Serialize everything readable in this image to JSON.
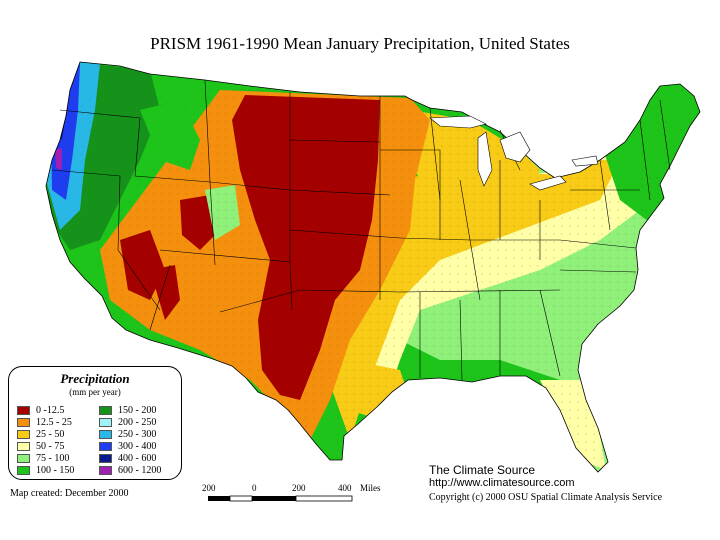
{
  "title": "PRISM 1961-1990 Mean January Precipitation, United States",
  "legend": {
    "title": "Precipitation",
    "units": "(mm per year)",
    "items": [
      {
        "label": "0 -12.5",
        "color": "#a50000"
      },
      {
        "label": "12.5 - 25",
        "color": "#f4900e"
      },
      {
        "label": "25 - 50",
        "color": "#f7cb16"
      },
      {
        "label": "50 - 75",
        "color": "#ffffa8"
      },
      {
        "label": "75 - 100",
        "color": "#8ff07a"
      },
      {
        "label": "100 - 150",
        "color": "#1dc41a"
      },
      {
        "label": "150 - 200",
        "color": "#14921a"
      },
      {
        "label": "200 - 250",
        "color": "#a0f4f8"
      },
      {
        "label": "250 - 300",
        "color": "#28b8e8"
      },
      {
        "label": "300 - 400",
        "color": "#1e3cf0"
      },
      {
        "label": "400 - 600",
        "color": "#0a1a8c"
      },
      {
        "label": "600 - 1200",
        "color": "#a020b4"
      }
    ]
  },
  "created": "Map created: December 2000",
  "source": {
    "name": "The Climate Source",
    "url": "http://www.climatesource.com",
    "copyright": "Copyright (c) 2000 OSU Spatial Climate Analysis Service"
  },
  "scale": {
    "labels": [
      "200",
      "0",
      "200",
      "400"
    ],
    "unit": "Miles"
  }
}
